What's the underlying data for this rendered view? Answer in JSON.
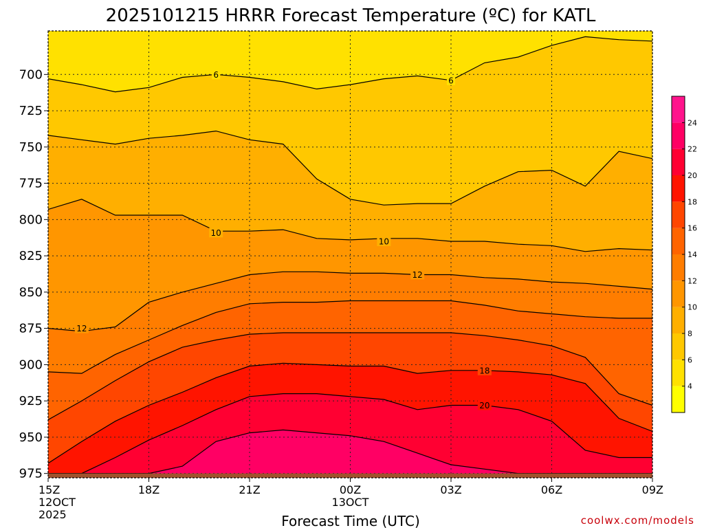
{
  "title": "2025101215 HRRR Forecast Temperature (ºC) for KATL",
  "credit": "coolwx.com/models",
  "chart_data": {
    "type": "filled-contour",
    "title": "2025101215 HRRR Forecast Temperature (ºC) for KATL",
    "xlabel": "Forecast Time (UTC)",
    "ylabel": "",
    "x_ticks": [
      {
        "hour": 0,
        "label": "15Z",
        "sub": [
          "12OCT",
          "2025"
        ]
      },
      {
        "hour": 3,
        "label": "18Z",
        "sub": []
      },
      {
        "hour": 6,
        "label": "21Z",
        "sub": []
      },
      {
        "hour": 9,
        "label": "00Z",
        "sub": [
          "13OCT"
        ]
      },
      {
        "hour": 12,
        "label": "03Z",
        "sub": []
      },
      {
        "hour": 15,
        "label": "06Z",
        "sub": []
      },
      {
        "hour": 18,
        "label": "09Z",
        "sub": []
      }
    ],
    "y_ticks": [
      700,
      725,
      750,
      775,
      800,
      825,
      850,
      875,
      900,
      925,
      950,
      975
    ],
    "y_range_hPa": [
      670,
      978
    ],
    "x_range_hours": [
      0,
      18
    ],
    "grid": true,
    "colorbar": {
      "position": "right",
      "levels": [
        4,
        6,
        8,
        10,
        12,
        14,
        16,
        18,
        20,
        22,
        24
      ],
      "colors": [
        "#ffff00",
        "#ffe100",
        "#ffc800",
        "#ffaf00",
        "#ff9600",
        "#ff7d00",
        "#ff6400",
        "#ff4600",
        "#ff1400",
        "#ff0032",
        "#ff0064",
        "#ff148c"
      ]
    },
    "ground_color": "#a0522d",
    "contour_labels": [
      {
        "value": "6",
        "hour": 5.0,
        "p": 700
      },
      {
        "value": "6",
        "hour": 12.0,
        "p": 704
      },
      {
        "value": "10",
        "hour": 5.0,
        "p": 809
      },
      {
        "value": "10",
        "hour": 10.0,
        "p": 815
      },
      {
        "value": "12",
        "hour": 1.0,
        "p": 875
      },
      {
        "value": "12",
        "hour": 11.0,
        "p": 838
      },
      {
        "value": "18",
        "hour": 13.0,
        "p": 904
      },
      {
        "value": "20",
        "hour": 13.0,
        "p": 928
      }
    ],
    "isotherms": [
      {
        "level": 6,
        "points": [
          [
            0,
            703
          ],
          [
            1,
            707
          ],
          [
            2,
            712
          ],
          [
            3,
            709
          ],
          [
            4,
            702
          ],
          [
            5,
            700
          ],
          [
            6,
            702
          ],
          [
            7,
            705
          ],
          [
            8,
            710
          ],
          [
            9,
            707
          ],
          [
            10,
            703
          ],
          [
            11,
            701
          ],
          [
            12,
            704
          ],
          [
            13,
            692
          ],
          [
            14,
            688
          ],
          [
            15,
            680
          ],
          [
            16,
            674
          ],
          [
            17,
            676
          ],
          [
            18,
            677
          ]
        ]
      },
      {
        "level": 8,
        "points": [
          [
            0,
            742
          ],
          [
            1,
            745
          ],
          [
            2,
            748
          ],
          [
            3,
            744
          ],
          [
            4,
            742
          ],
          [
            5,
            739
          ],
          [
            6,
            745
          ],
          [
            7,
            748
          ],
          [
            8,
            772
          ],
          [
            9,
            786
          ],
          [
            10,
            790
          ],
          [
            11,
            789
          ],
          [
            12,
            789
          ],
          [
            13,
            777
          ],
          [
            14,
            767
          ],
          [
            15,
            766
          ],
          [
            16,
            777
          ],
          [
            17,
            753
          ],
          [
            18,
            758
          ]
        ]
      },
      {
        "level": 10,
        "points": [
          [
            0,
            793
          ],
          [
            1,
            786
          ],
          [
            2,
            797
          ],
          [
            3,
            797
          ],
          [
            4,
            797
          ],
          [
            5,
            808
          ],
          [
            6,
            808
          ],
          [
            7,
            807
          ],
          [
            8,
            813
          ],
          [
            9,
            814
          ],
          [
            10,
            813
          ],
          [
            11,
            813
          ],
          [
            12,
            815
          ],
          [
            13,
            815
          ],
          [
            14,
            817
          ],
          [
            15,
            818
          ],
          [
            16,
            822
          ],
          [
            17,
            820
          ],
          [
            18,
            821
          ]
        ]
      },
      {
        "level": 12,
        "points": [
          [
            0,
            875
          ],
          [
            1,
            877
          ],
          [
            2,
            874
          ],
          [
            3,
            857
          ],
          [
            4,
            850
          ],
          [
            5,
            844
          ],
          [
            6,
            838
          ],
          [
            7,
            836
          ],
          [
            8,
            836
          ],
          [
            9,
            837
          ],
          [
            10,
            837
          ],
          [
            11,
            838
          ],
          [
            12,
            838
          ],
          [
            13,
            840
          ],
          [
            14,
            841
          ],
          [
            15,
            843
          ],
          [
            16,
            844
          ],
          [
            17,
            846
          ],
          [
            18,
            848
          ]
        ]
      },
      {
        "level": 14,
        "points": [
          [
            0,
            905
          ],
          [
            1,
            906
          ],
          [
            2,
            893
          ],
          [
            3,
            883
          ],
          [
            4,
            873
          ],
          [
            5,
            864
          ],
          [
            6,
            858
          ],
          [
            7,
            857
          ],
          [
            8,
            857
          ],
          [
            9,
            856
          ],
          [
            10,
            856
          ],
          [
            11,
            856
          ],
          [
            12,
            856
          ],
          [
            13,
            859
          ],
          [
            14,
            863
          ],
          [
            15,
            865
          ],
          [
            16,
            867
          ],
          [
            17,
            868
          ],
          [
            18,
            868
          ]
        ]
      },
      {
        "level": 16,
        "points": [
          [
            0,
            938
          ],
          [
            1,
            925
          ],
          [
            2,
            911
          ],
          [
            3,
            898
          ],
          [
            4,
            888
          ],
          [
            5,
            883
          ],
          [
            6,
            879
          ],
          [
            7,
            878
          ],
          [
            8,
            878
          ],
          [
            9,
            878
          ],
          [
            10,
            878
          ],
          [
            11,
            878
          ],
          [
            12,
            878
          ],
          [
            13,
            880
          ],
          [
            14,
            883
          ],
          [
            15,
            887
          ],
          [
            16,
            895
          ],
          [
            17,
            920
          ],
          [
            18,
            928
          ]
        ]
      },
      {
        "level": 18,
        "points": [
          [
            0,
            968
          ],
          [
            1,
            953
          ],
          [
            2,
            939
          ],
          [
            3,
            928
          ],
          [
            4,
            919
          ],
          [
            5,
            909
          ],
          [
            6,
            901
          ],
          [
            7,
            899
          ],
          [
            8,
            900
          ],
          [
            9,
            901
          ],
          [
            10,
            901
          ],
          [
            11,
            906
          ],
          [
            12,
            904
          ],
          [
            13,
            904
          ],
          [
            14,
            905
          ],
          [
            15,
            907
          ],
          [
            16,
            913
          ],
          [
            17,
            937
          ],
          [
            18,
            946
          ]
        ]
      },
      {
        "level": 20,
        "points": [
          [
            0,
            975
          ],
          [
            1,
            975
          ],
          [
            2,
            964
          ],
          [
            3,
            952
          ],
          [
            4,
            942
          ],
          [
            5,
            931
          ],
          [
            6,
            922
          ],
          [
            7,
            920
          ],
          [
            8,
            920
          ],
          [
            9,
            922
          ],
          [
            10,
            924
          ],
          [
            11,
            931
          ],
          [
            12,
            928
          ],
          [
            13,
            928
          ],
          [
            14,
            931
          ],
          [
            15,
            939
          ],
          [
            16,
            959
          ],
          [
            17,
            964
          ],
          [
            18,
            964
          ]
        ]
      },
      {
        "level": 22,
        "points": [
          [
            0,
            975
          ],
          [
            1,
            975
          ],
          [
            2,
            975
          ],
          [
            3,
            975
          ],
          [
            4,
            970
          ],
          [
            5,
            953
          ],
          [
            6,
            947
          ],
          [
            7,
            945
          ],
          [
            8,
            947
          ],
          [
            9,
            949
          ],
          [
            10,
            953
          ],
          [
            11,
            961
          ],
          [
            12,
            969
          ],
          [
            13,
            972
          ],
          [
            14,
            975
          ],
          [
            15,
            975
          ],
          [
            16,
            975
          ],
          [
            17,
            975
          ],
          [
            18,
            975
          ]
        ]
      }
    ]
  }
}
